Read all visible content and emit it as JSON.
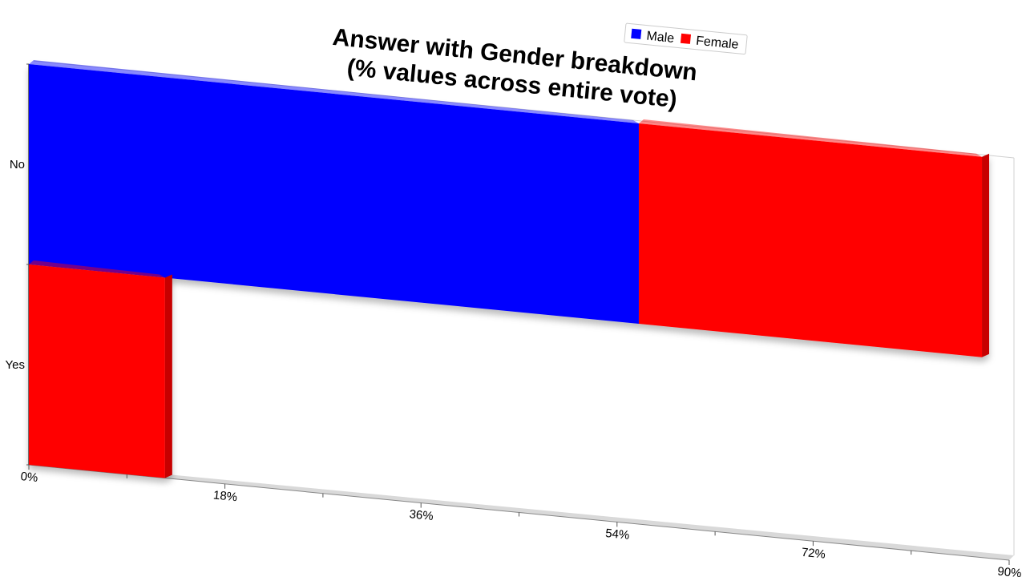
{
  "chart_data": {
    "type": "bar",
    "orientation": "horizontal",
    "stacked": true,
    "title": [
      "Answer with Gender breakdown",
      "(% values across entire vote)"
    ],
    "categories": [
      "No",
      "Yes"
    ],
    "series": [
      {
        "name": "Male",
        "color": "#0000ff",
        "values": [
          56,
          0
        ]
      },
      {
        "name": "Female",
        "color": "#ff0000",
        "values": [
          31.5,
          12.5
        ]
      }
    ],
    "xlim": [
      0,
      90
    ],
    "xticks": [
      "0%",
      "18%",
      "36%",
      "54%",
      "72%",
      "90%"
    ],
    "legend": "top-right",
    "grid": false
  }
}
